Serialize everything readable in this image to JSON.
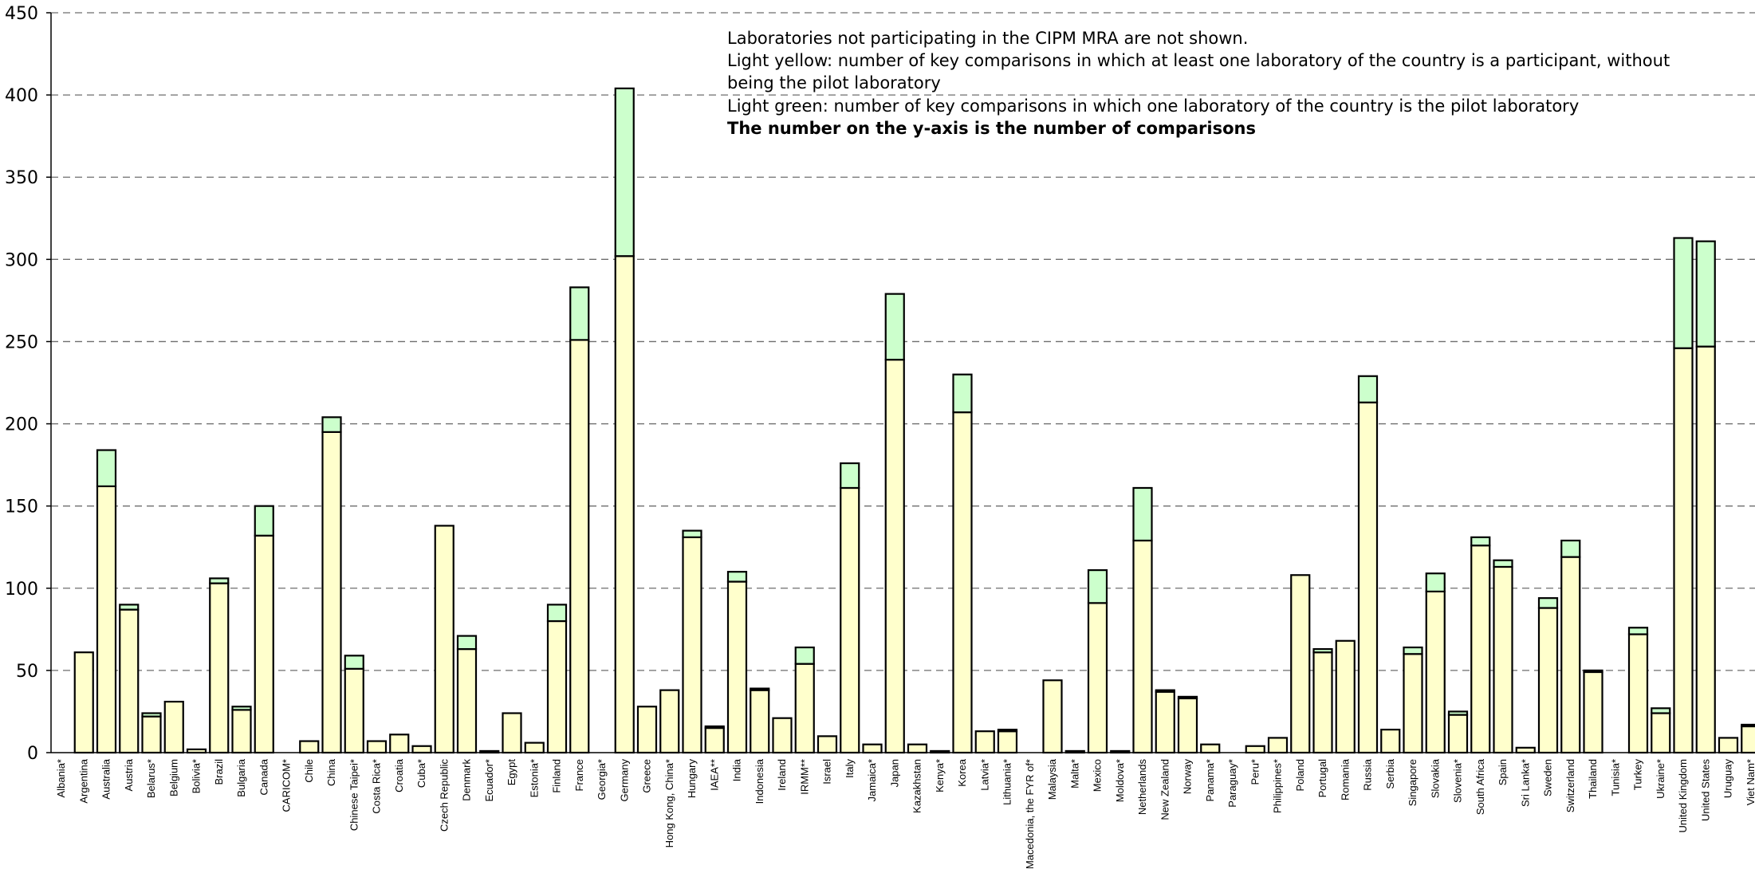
{
  "chart_data": {
    "type": "bar",
    "stacked": true,
    "title": "",
    "xlabel": "",
    "ylabel": "",
    "ylim": [
      0,
      450
    ],
    "yticks": [
      0,
      50,
      100,
      150,
      200,
      250,
      300,
      350,
      400,
      450
    ],
    "grid": true,
    "colors": {
      "participant": "#ffffcc",
      "pilot": "#ccffcc",
      "outline": "#000000",
      "grid": "#6e6e6e"
    },
    "annotations": [
      "Laboratories not participating in the CIPM MRA are not shown.",
      "Light yellow:  number of key comparisons in which at least one laboratory of the country is a participant, without",
      "being the pilot laboratory",
      "Light green:  number of key comparisons in which one laboratory of the country is the pilot laboratory",
      "The number on the y-axis is the number of comparisons"
    ],
    "categories": [
      "Albania*",
      "Argentina",
      "Australia",
      "Austria",
      "Belarus*",
      "Belgium",
      "Bolivia*",
      "Brazil",
      "Bulgaria",
      "Canada",
      "CARICOM*",
      "Chile",
      "China",
      "Chinese Taipei*",
      "Costa Rica*",
      "Croatia",
      "Cuba*",
      "Czech Republic",
      "Denmark",
      "Ecuador*",
      "Egypt",
      "Estonia*",
      "Finland",
      "France",
      "Georgia*",
      "Germany",
      "Greece",
      "Hong Kong, China*",
      "Hungary",
      "IAEA**",
      "India",
      "Indonesia",
      "Ireland",
      "IRMM**",
      "Israel",
      "Italy",
      "Jamaica*",
      "Japan",
      "Kazakhstan",
      "Kenya*",
      "Korea",
      "Latvia*",
      "Lithuania*",
      "Macedonia, the FYR of*",
      "Malaysia",
      "Malta*",
      "Mexico",
      "Moldova*",
      "Netherlands",
      "New Zealand",
      "Norway",
      "Panama*",
      "Paraguay*",
      "Peru*",
      "Philippines*",
      "Poland",
      "Portugal",
      "Romania",
      "Russia",
      "Serbia",
      "Singapore",
      "Slovakia",
      "Slovenia*",
      "South Africa",
      "Spain",
      "Sri Lanka*",
      "Sweden",
      "Switzerland",
      "Thailand",
      "Tunisia*",
      "Turkey",
      "Ukraine*",
      "United Kingdom",
      "United States",
      "Uruguay",
      "Viet Nam*"
    ],
    "series": [
      {
        "name": "Light yellow",
        "values": [
          0,
          61,
          162,
          87,
          22,
          31,
          2,
          103,
          26,
          132,
          0,
          7,
          195,
          51,
          7,
          11,
          4,
          138,
          63,
          1,
          24,
          6,
          80,
          251,
          0,
          302,
          28,
          38,
          131,
          15,
          104,
          38,
          21,
          54,
          10,
          161,
          5,
          239,
          5,
          1,
          207,
          13,
          13,
          0,
          44,
          1,
          91,
          1,
          129,
          37,
          33,
          5,
          0,
          4,
          9,
          108,
          61,
          68,
          213,
          14,
          60,
          98,
          23,
          126,
          113,
          3,
          88,
          119,
          49,
          0,
          72,
          24,
          246,
          247,
          9,
          16
        ]
      },
      {
        "name": "Light green",
        "values": [
          0,
          0,
          22,
          3,
          2,
          0,
          0,
          3,
          2,
          18,
          0,
          0,
          9,
          8,
          0,
          0,
          0,
          0,
          8,
          0,
          0,
          0,
          10,
          32,
          0,
          102,
          0,
          0,
          4,
          1,
          6,
          1,
          0,
          10,
          0,
          15,
          0,
          40,
          0,
          0,
          23,
          0,
          1,
          0,
          0,
          0,
          20,
          0,
          32,
          1,
          1,
          0,
          0,
          0,
          0,
          0,
          2,
          0,
          16,
          0,
          4,
          11,
          2,
          5,
          4,
          0,
          6,
          10,
          1,
          0,
          4,
          3,
          67,
          64,
          0,
          1
        ]
      }
    ]
  }
}
